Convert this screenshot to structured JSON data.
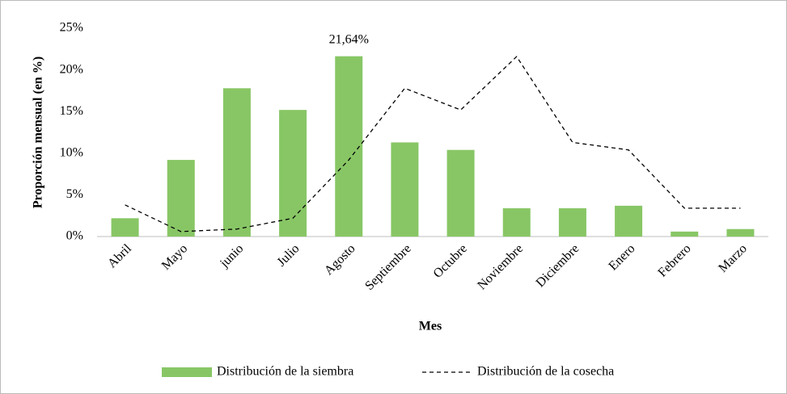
{
  "chart_data": {
    "type": "bar",
    "ylabel": "Proporción mensual (en %)",
    "xlabel": "Mes",
    "categories": [
      "Abril",
      "Mayo",
      "junio",
      "Julio",
      "Agosto",
      "Septiembre",
      "Octubre",
      "Noviembre",
      "Diciembre",
      "Enero",
      "Febrero",
      "Marzo"
    ],
    "series": [
      {
        "name": "Distribución de la siembra",
        "type": "bar",
        "color": "#88c665",
        "values": [
          2.2,
          9.2,
          17.8,
          15.2,
          21.64,
          11.3,
          10.4,
          3.4,
          3.4,
          3.7,
          0.6,
          0.9
        ],
        "value_labels": [
          null,
          null,
          null,
          null,
          "21,64%",
          null,
          null,
          null,
          null,
          null,
          null,
          null
        ]
      },
      {
        "name": "Distribución de la cosecha",
        "type": "line",
        "color": "#000000",
        "linestyle": "dashed",
        "values": [
          3.8,
          0.6,
          0.9,
          2.2,
          9.2,
          17.8,
          15.2,
          21.6,
          11.3,
          10.4,
          3.4,
          3.4
        ]
      }
    ],
    "ylim": [
      0,
      25
    ],
    "yticks": [
      {
        "value": 0,
        "label": "0%"
      },
      {
        "value": 5,
        "label": "5%"
      },
      {
        "value": 10,
        "label": "10%"
      },
      {
        "value": 15,
        "label": "15%"
      },
      {
        "value": 20,
        "label": "20%"
      },
      {
        "value": 25,
        "label": "25%"
      }
    ],
    "grid": false,
    "legend": "bottom"
  }
}
